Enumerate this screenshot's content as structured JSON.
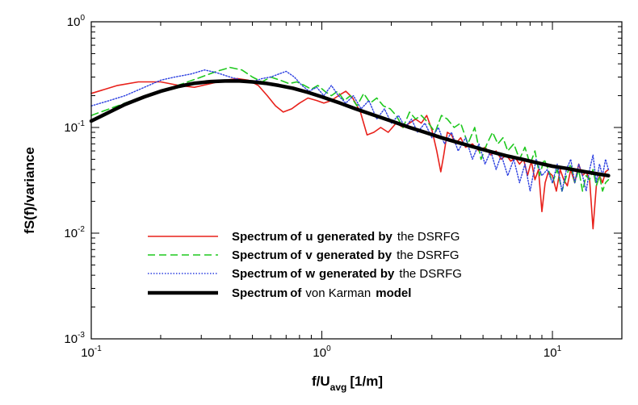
{
  "chart_data": {
    "type": "line",
    "x_scale": "log",
    "y_scale": "log",
    "xlim": [
      0.1,
      20
    ],
    "ylim": [
      0.001,
      1
    ],
    "xlabel": "f/U",
    "xlabel_sub": "avg",
    "xlabel_unit": "[1/m]",
    "ylabel": "fS(f)/variance",
    "x_ticks": [
      {
        "value": 0.1,
        "base": "10",
        "exp": "-1"
      },
      {
        "value": 1,
        "base": "10",
        "exp": "0"
      },
      {
        "value": 10,
        "base": "10",
        "exp": "1"
      }
    ],
    "y_ticks": [
      {
        "value": 0.001,
        "base": "10",
        "exp": "-3"
      },
      {
        "value": 0.01,
        "base": "10",
        "exp": "-2"
      },
      {
        "value": 0.1,
        "base": "10",
        "exp": "-1"
      },
      {
        "value": 1,
        "base": "10",
        "exp": "0"
      }
    ],
    "legend_position": "lower-left",
    "series": [
      {
        "name": "Spectrum of u generated by the DSRFG",
        "color": "#e8201a",
        "style": "solid",
        "x": [
          0.1,
          0.13,
          0.16,
          0.2,
          0.24,
          0.28,
          0.33,
          0.38,
          0.43,
          0.48,
          0.53,
          0.58,
          0.63,
          0.68,
          0.74,
          0.8,
          0.87,
          0.95,
          1.02,
          1.1,
          1.18,
          1.27,
          1.36,
          1.47,
          1.57,
          1.68,
          1.8,
          1.94,
          2.1,
          2.25,
          2.4,
          2.55,
          2.7,
          2.85,
          3.0,
          3.15,
          3.28,
          3.38,
          3.5,
          3.65,
          3.8,
          4.0,
          4.2,
          4.5,
          4.8,
          5.1,
          5.4,
          5.7,
          6.0,
          6.3,
          6.6,
          6.9,
          7.2,
          7.5,
          7.8,
          8.1,
          8.4,
          8.7,
          9.0,
          9.3,
          9.6,
          10.0,
          10.4,
          10.8,
          11.2,
          11.6,
          12.0,
          12.5,
          13.0,
          13.5,
          14.0,
          14.5,
          15.0,
          15.5,
          16.0,
          16.5,
          17.0,
          17.5
        ],
        "y": [
          0.21,
          0.25,
          0.27,
          0.27,
          0.25,
          0.24,
          0.26,
          0.28,
          0.29,
          0.28,
          0.25,
          0.2,
          0.16,
          0.14,
          0.15,
          0.17,
          0.19,
          0.18,
          0.17,
          0.18,
          0.2,
          0.22,
          0.19,
          0.14,
          0.085,
          0.09,
          0.1,
          0.09,
          0.11,
          0.1,
          0.11,
          0.12,
          0.11,
          0.13,
          0.095,
          0.06,
          0.038,
          0.055,
          0.09,
          0.085,
          0.07,
          0.08,
          0.065,
          0.07,
          0.06,
          0.065,
          0.055,
          0.06,
          0.05,
          0.055,
          0.048,
          0.052,
          0.045,
          0.05,
          0.035,
          0.048,
          0.032,
          0.04,
          0.016,
          0.03,
          0.038,
          0.035,
          0.025,
          0.04,
          0.032,
          0.028,
          0.04,
          0.03,
          0.045,
          0.035,
          0.038,
          0.032,
          0.011,
          0.028,
          0.035,
          0.03,
          0.038,
          0.04
        ]
      },
      {
        "name": "Spectrum of v generated by the DSRFG",
        "color": "#1ec81e",
        "style": "dashed",
        "x": [
          0.1,
          0.13,
          0.16,
          0.2,
          0.25,
          0.3,
          0.35,
          0.4,
          0.45,
          0.5,
          0.55,
          0.6,
          0.66,
          0.72,
          0.78,
          0.84,
          0.9,
          0.96,
          1.03,
          1.1,
          1.17,
          1.25,
          1.33,
          1.42,
          1.52,
          1.62,
          1.73,
          1.85,
          1.98,
          2.1,
          2.25,
          2.4,
          2.55,
          2.7,
          2.9,
          3.1,
          3.3,
          3.5,
          3.75,
          4.0,
          4.3,
          4.6,
          4.9,
          5.2,
          5.5,
          5.8,
          6.1,
          6.4,
          6.8,
          7.2,
          7.6,
          8.0,
          8.4,
          8.8,
          9.2,
          9.6,
          10.0,
          10.5,
          11.0,
          11.5,
          12.0,
          12.5,
          13.0,
          13.5,
          14.0,
          14.5,
          15.0,
          15.5,
          16.0,
          16.5,
          17.0,
          17.5
        ],
        "y": [
          0.13,
          0.16,
          0.19,
          0.22,
          0.26,
          0.3,
          0.34,
          0.37,
          0.35,
          0.3,
          0.27,
          0.3,
          0.28,
          0.26,
          0.27,
          0.25,
          0.23,
          0.25,
          0.22,
          0.2,
          0.22,
          0.18,
          0.2,
          0.16,
          0.21,
          0.17,
          0.19,
          0.16,
          0.15,
          0.13,
          0.1,
          0.14,
          0.12,
          0.13,
          0.11,
          0.09,
          0.13,
          0.12,
          0.1,
          0.11,
          0.07,
          0.1,
          0.05,
          0.07,
          0.09,
          0.07,
          0.08,
          0.06,
          0.07,
          0.05,
          0.065,
          0.045,
          0.06,
          0.035,
          0.05,
          0.04,
          0.03,
          0.04,
          0.025,
          0.035,
          0.045,
          0.03,
          0.04,
          0.025,
          0.035,
          0.032,
          0.04,
          0.028,
          0.035,
          0.025,
          0.03,
          0.032
        ]
      },
      {
        "name": "Spectrum of w generated by the DSRFG",
        "color": "#2b3fe0",
        "style": "dotted",
        "x": [
          0.1,
          0.12,
          0.14,
          0.17,
          0.2,
          0.23,
          0.27,
          0.31,
          0.35,
          0.4,
          0.45,
          0.5,
          0.55,
          0.6,
          0.65,
          0.7,
          0.76,
          0.82,
          0.88,
          0.95,
          1.02,
          1.1,
          1.18,
          1.27,
          1.37,
          1.48,
          1.6,
          1.73,
          1.87,
          2.0,
          2.15,
          2.3,
          2.45,
          2.6,
          2.8,
          3.0,
          3.2,
          3.4,
          3.65,
          3.9,
          4.2,
          4.5,
          4.8,
          5.1,
          5.4,
          5.7,
          6.0,
          6.4,
          6.8,
          7.2,
          7.6,
          8.0,
          8.5,
          9.0,
          9.5,
          10.0,
          10.5,
          11.0,
          11.5,
          12.0,
          12.5,
          13.0,
          13.5,
          14.0,
          14.5,
          15.0,
          15.5,
          16.0,
          16.5,
          17.0,
          17.5
        ],
        "y": [
          0.16,
          0.18,
          0.2,
          0.24,
          0.28,
          0.3,
          0.32,
          0.35,
          0.33,
          0.3,
          0.28,
          0.27,
          0.29,
          0.3,
          0.32,
          0.34,
          0.3,
          0.25,
          0.22,
          0.24,
          0.2,
          0.25,
          0.2,
          0.17,
          0.2,
          0.15,
          0.18,
          0.12,
          0.15,
          0.11,
          0.13,
          0.1,
          0.12,
          0.09,
          0.11,
          0.08,
          0.1,
          0.07,
          0.09,
          0.06,
          0.08,
          0.05,
          0.07,
          0.045,
          0.06,
          0.04,
          0.055,
          0.035,
          0.05,
          0.03,
          0.045,
          0.025,
          0.05,
          0.035,
          0.04,
          0.03,
          0.045,
          0.025,
          0.04,
          0.05,
          0.03,
          0.045,
          0.035,
          0.025,
          0.04,
          0.055,
          0.03,
          0.045,
          0.035,
          0.05,
          0.04
        ]
      },
      {
        "name": "Spectrum of von Karman model",
        "color": "#000000",
        "style": "thick",
        "x": [
          0.1,
          0.12,
          0.14,
          0.17,
          0.2,
          0.24,
          0.28,
          0.33,
          0.38,
          0.44,
          0.5,
          0.57,
          0.65,
          0.75,
          0.87,
          1.0,
          1.2,
          1.4,
          1.7,
          2.0,
          2.4,
          2.8,
          3.3,
          3.9,
          4.6,
          5.4,
          6.3,
          7.4,
          8.7,
          10.0,
          11.5,
          13.0,
          15.0,
          17.5
        ],
        "y": [
          0.115,
          0.14,
          0.165,
          0.195,
          0.22,
          0.245,
          0.262,
          0.272,
          0.275,
          0.275,
          0.27,
          0.262,
          0.25,
          0.235,
          0.215,
          0.195,
          0.17,
          0.15,
          0.13,
          0.115,
          0.1,
          0.09,
          0.08,
          0.072,
          0.065,
          0.059,
          0.054,
          0.05,
          0.046,
          0.043,
          0.041,
          0.039,
          0.037,
          0.035
        ]
      }
    ]
  },
  "legend": {
    "items": [
      {
        "prefix": "Spectrum",
        "of": "of",
        "var": "u",
        "suffix": "generated by",
        "tail": "the DSRFG"
      },
      {
        "prefix": "Spectrum",
        "of": "of",
        "var": "v",
        "suffix": "generated by",
        "tail": "the DSRFG"
      },
      {
        "prefix": "Spectrum",
        "of": "of",
        "var": "w",
        "suffix": "generated by",
        "tail": "the DSRFG"
      },
      {
        "prefix": "Spectrum",
        "of": "of",
        "var": "",
        "suffix": "von Karman",
        "tail": "model"
      }
    ]
  }
}
